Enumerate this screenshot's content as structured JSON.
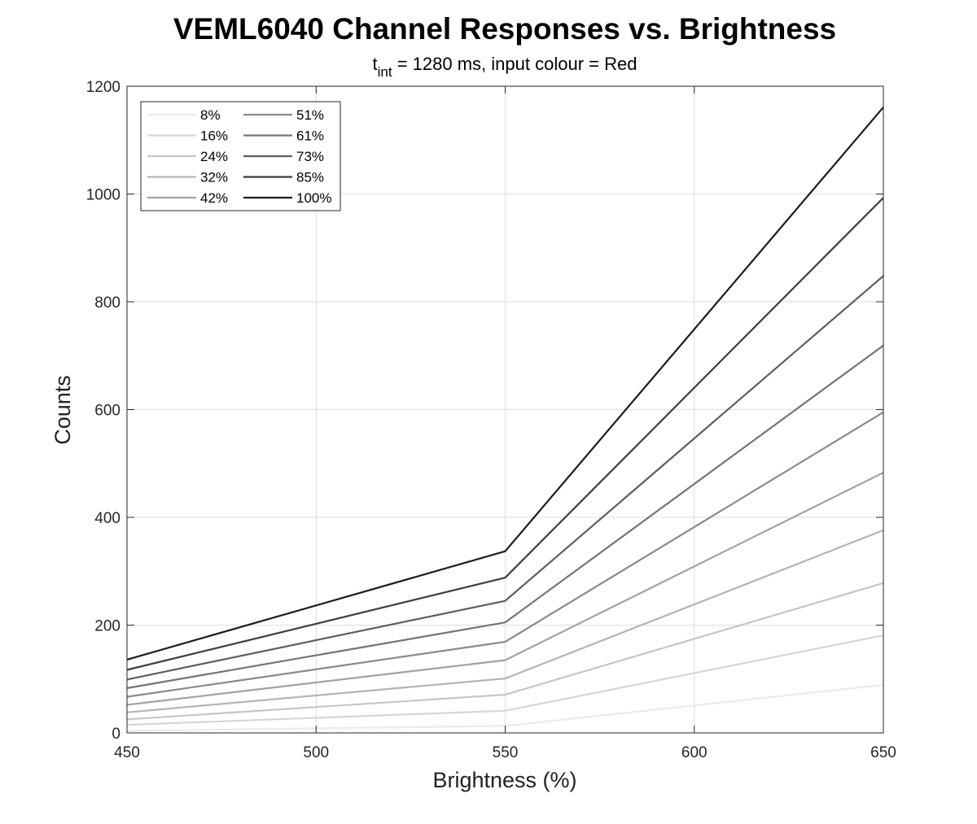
{
  "chart_data": {
    "type": "line",
    "title": "VEML6040 Channel Responses vs. Brightness",
    "subtitle": {
      "t": "t",
      "sub": "int",
      "rest": " = 1280 ms, input colour = Red"
    },
    "xlabel": "Brightness (%)",
    "ylabel": "Counts",
    "xlim": [
      450,
      650
    ],
    "ylim": [
      0,
      1200
    ],
    "xticks": [
      450,
      500,
      550,
      600,
      650
    ],
    "yticks": [
      0,
      200,
      400,
      600,
      800,
      1000,
      1200
    ],
    "grid": true,
    "legend_position": "top-left",
    "legend_columns": 2,
    "x": [
      450,
      550,
      650
    ],
    "series": [
      {
        "name": "8%",
        "color": "#ebebeb",
        "values": [
          4,
          13,
          89
        ]
      },
      {
        "name": "16%",
        "color": "#d6d6d6",
        "values": [
          15,
          41,
          181
        ]
      },
      {
        "name": "24%",
        "color": "#c6c6c6",
        "values": [
          25,
          71,
          278
        ]
      },
      {
        "name": "32%",
        "color": "#b4b4b4",
        "values": [
          38,
          101,
          376
        ]
      },
      {
        "name": "42%",
        "color": "#a2a2a2",
        "values": [
          52,
          135,
          483
        ]
      },
      {
        "name": "51%",
        "color": "#8a8a8a",
        "values": [
          67,
          169,
          595
        ]
      },
      {
        "name": "61%",
        "color": "#747474",
        "values": [
          83,
          205,
          719
        ]
      },
      {
        "name": "73%",
        "color": "#5e5e5e",
        "values": [
          99,
          245,
          848
        ]
      },
      {
        "name": "85%",
        "color": "#3e3e3e",
        "values": [
          117,
          288,
          993
        ]
      },
      {
        "name": "100%",
        "color": "#1c1c1c",
        "values": [
          136,
          337,
          1161
        ]
      }
    ]
  }
}
